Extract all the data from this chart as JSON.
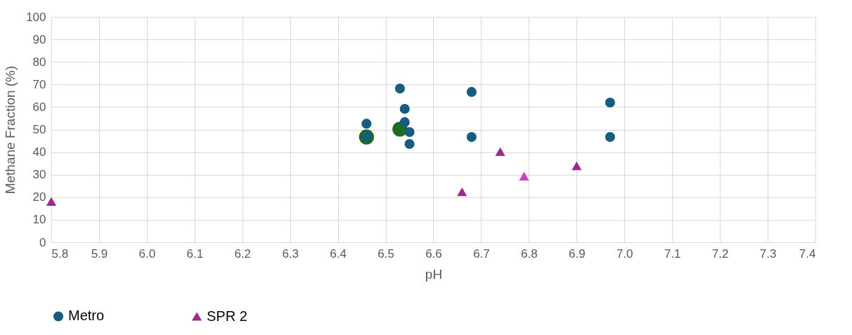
{
  "chart_data": {
    "type": "scatter",
    "xlabel": "pH",
    "ylabel": "Methane Fraction (%)",
    "xlim": [
      5.8,
      7.4
    ],
    "ylim": [
      0,
      100
    ],
    "xticks": [
      5.8,
      5.9,
      {
        "value": 6,
        "label": "6.0"
      },
      6.1,
      6.2,
      6.3,
      6.4,
      6.5,
      6.6,
      6.7,
      6.8,
      6.9,
      {
        "value": 7,
        "label": "7.0"
      },
      7.1,
      7.2,
      7.3,
      7.4
    ],
    "yticks": [
      0,
      10,
      20,
      30,
      40,
      50,
      60,
      70,
      80,
      90,
      100
    ],
    "grid": true,
    "legend": "bottom left",
    "series": [
      {
        "color": "#1e6b23",
        "marker": "circle",
        "x": [
          6.46,
          6.53
        ],
        "values": [
          46.7,
          50.2
        ]
      },
      {
        "name": "Metro",
        "color": "#165e80",
        "marker": "circle",
        "x": [
          6.46,
          6.46,
          6.53,
          6.54,
          6.54,
          6.55,
          6.55,
          6.68,
          6.68,
          6.97,
          6.97
        ],
        "values": [
          52.6,
          46.7,
          68.2,
          59.2,
          53.3,
          48.9,
          43.6,
          66.7,
          46.7,
          62.0,
          46.7
        ]
      },
      {
        "name": "SPR 2",
        "color": "#9c2a8e",
        "colors": [
          "#9c2a8e",
          "#9c2a8e",
          "#9c2a8e",
          "#cc3fbf",
          "#9c2a8e"
        ],
        "marker": "triangle",
        "x": [
          5.8,
          6.66,
          6.74,
          6.79,
          6.9
        ],
        "values": [
          18.1,
          22.4,
          40.2,
          29.3,
          33.9
        ]
      }
    ]
  }
}
